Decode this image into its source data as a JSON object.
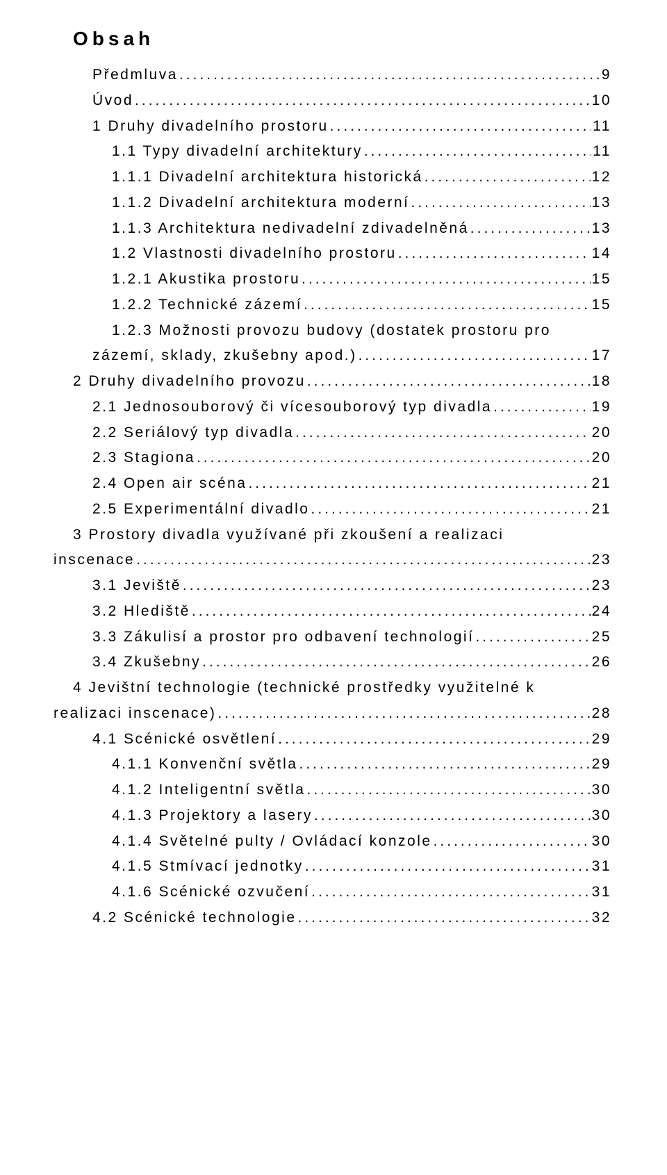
{
  "title": "Obsah",
  "entries": [
    {
      "label": "Předmluva",
      "page": "9",
      "indent": 1
    },
    {
      "label": "Úvod",
      "page": "10",
      "indent": 1
    },
    {
      "label": "1 Druhy divadelního prostoru",
      "page": "11",
      "indent": 1
    },
    {
      "label": "1.1 Typy divadelní architektury",
      "page": "11",
      "indent": 2
    },
    {
      "label": "1.1.1 Divadelní architektura historická",
      "page": "12",
      "indent": 2
    },
    {
      "label": "1.1.2 Divadelní architektura moderní",
      "page": "13",
      "indent": 2
    },
    {
      "label": "1.1.3 Architektura nedivadelní zdivadelněná",
      "page": "13",
      "indent": 2
    },
    {
      "label": "1.2 Vlastnosti divadelního prostoru",
      "page": "14",
      "indent": 2
    },
    {
      "label": "1.2.1 Akustika prostoru",
      "page": "15",
      "indent": 2
    },
    {
      "label": "1.2.2 Technické zázemí",
      "page": "15",
      "indent": 2
    },
    {
      "label": "1.2.3 Možnosti provozu budovy (dostatek prostoru pro",
      "cont": "zázemí, sklady, zkušebny apod.)",
      "page": "17",
      "indent": 2,
      "contIndent": 1
    },
    {
      "label": "2 Druhy divadelního provozu",
      "page": "18",
      "indent": 0
    },
    {
      "label": "2.1 Jednosouborový či vícesouborový typ divadla",
      "page": "19",
      "indent": 1
    },
    {
      "label": "2.2 Seriálový typ divadla",
      "page": "20",
      "indent": 1
    },
    {
      "label": "2.3 Stagiona",
      "page": "20",
      "indent": 1
    },
    {
      "label": "2.4 Open air scéna",
      "page": "21",
      "indent": 1
    },
    {
      "label": "2.5  Experimentální divadlo",
      "page": "21",
      "indent": 1
    },
    {
      "label": "3 Prostory divadla využívané při zkoušení a realizaci",
      "cont": "inscenace",
      "page": "23",
      "indent": 0,
      "contIndent": -1
    },
    {
      "label": "3.1 Jeviště",
      "page": "23",
      "indent": 1
    },
    {
      "label": "3.2 Hlediště",
      "page": "24",
      "indent": 1
    },
    {
      "label": "3.3 Zákulisí a prostor pro odbavení technologií",
      "page": "25",
      "indent": 1
    },
    {
      "label": "3.4 Zkušebny",
      "page": "26",
      "indent": 1
    },
    {
      "label": "4 Jevištní technologie (technické prostředky využitelné k",
      "cont": "realizaci inscenace)",
      "page": "28",
      "indent": 0,
      "contIndent": -1
    },
    {
      "label": "4.1 Scénické osvětlení",
      "page": "29",
      "indent": 1
    },
    {
      "label": "4.1.1 Konvenční světla",
      "page": "29",
      "indent": 2
    },
    {
      "label": "4.1.2 Inteligentní světla",
      "page": "30",
      "indent": 2
    },
    {
      "label": "4.1.3 Projektory a lasery",
      "page": "30",
      "indent": 2
    },
    {
      "label": "4.1.4 Světelné pulty / Ovládací konzole",
      "page": "30",
      "indent": 2
    },
    {
      "label": "4.1.5 Stmívací jednotky",
      "page": "31",
      "indent": 2
    },
    {
      "label": "4.1.6 Scénické ozvučení",
      "page": "31",
      "indent": 2
    },
    {
      "label": "4.2 Scénické technologie",
      "page": "32",
      "indent": 1
    }
  ]
}
